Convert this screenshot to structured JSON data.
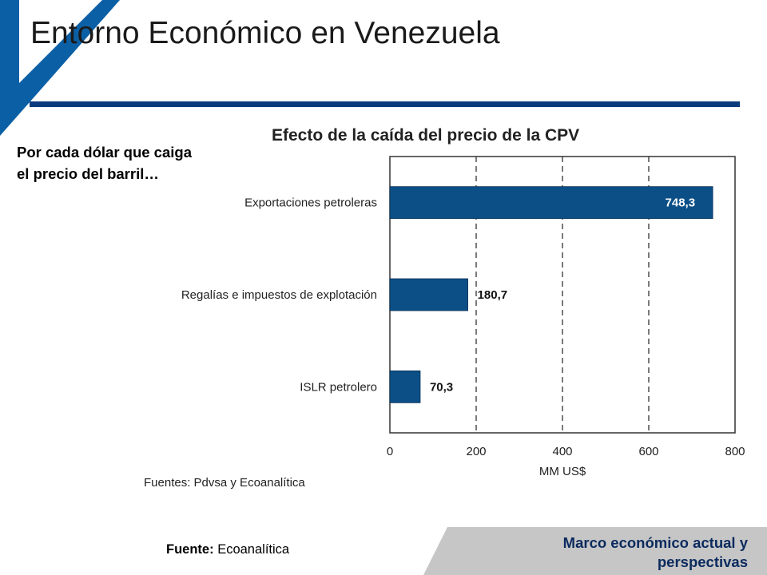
{
  "slide": {
    "title": "Entorno Económico en Venezuela",
    "intro": "Por cada dólar que caiga el precio del barril…",
    "footer_source_label": "Fuente:",
    "footer_source_value": "Ecoanalítica",
    "footer_section": "Marco económico actual y perspectivas"
  },
  "colors": {
    "accent": "#0b5fa5",
    "bar": "#0b4f86",
    "rule": "#0b3a7e"
  },
  "chart_data": {
    "type": "bar",
    "orientation": "horizontal",
    "title": "Efecto de la caída del precio de la CPV",
    "categories": [
      "Exportaciones petroleras",
      "Regalías e impuestos de explotación",
      "ISLR petrolero"
    ],
    "values": [
      748.3,
      180.7,
      70.3
    ],
    "value_labels": [
      "748,3",
      "180,7",
      "70,3"
    ],
    "xlabel": "MM US$",
    "xlim": [
      0,
      800
    ],
    "xticks": [
      "0",
      "200",
      "400",
      "600",
      "800"
    ],
    "grid": "dashed vertical",
    "source_note": "Fuentes: Pdvsa y Ecoanalítica"
  }
}
